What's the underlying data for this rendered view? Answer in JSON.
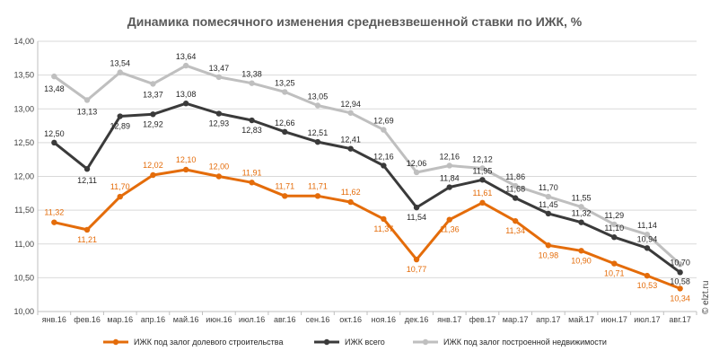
{
  "chart_data": {
    "type": "line",
    "title": "Динамика помесячного изменения средневзвешенной ставки по ИЖК, %",
    "categories": [
      "янв.16",
      "фев.16",
      "мар.16",
      "апр.16",
      "май.16",
      "июн.16",
      "июл.16",
      "авг.16",
      "сен.16",
      "окт.16",
      "ноя.16",
      "дек.16",
      "янв.17",
      "фев.17",
      "мар.17",
      "апр.17",
      "май.17",
      "июн.17",
      "июл.17",
      "авг.17"
    ],
    "ylim": [
      10.0,
      14.0
    ],
    "yticks": [
      "10,00",
      "10,50",
      "11,00",
      "11,50",
      "12,00",
      "12,50",
      "13,00",
      "13,50",
      "14,00"
    ],
    "grid": true,
    "legend_position": "bottom",
    "series": [
      {
        "name": "ИЖК под залог долевого строительства",
        "color": "#e46c0a",
        "values": [
          11.32,
          11.21,
          11.7,
          12.02,
          12.1,
          12.0,
          11.91,
          11.71,
          11.71,
          11.62,
          11.37,
          10.77,
          11.36,
          11.61,
          11.34,
          10.98,
          10.9,
          10.71,
          10.53,
          10.34
        ],
        "labels": [
          "11,32",
          "11,21",
          "11,70",
          "12,02",
          "12,10",
          "12,00",
          "11,91",
          "11,71",
          "11,71",
          "11,62",
          "11,37",
          "10,77",
          "11,36",
          "11,61",
          "11,34",
          "10,98",
          "10,90",
          "10,71",
          "10,53",
          "10,34"
        ]
      },
      {
        "name": "ИЖК всего",
        "color": "#3a3a3a",
        "values": [
          12.5,
          12.11,
          12.89,
          12.92,
          13.08,
          12.93,
          12.83,
          12.66,
          12.51,
          12.41,
          12.16,
          11.54,
          11.84,
          11.95,
          11.68,
          11.45,
          11.32,
          11.1,
          10.94,
          10.58
        ],
        "labels": [
          "12,50",
          "12,11",
          "12,89",
          "12,92",
          "13,08",
          "12,93",
          "12,83",
          "12,66",
          "12,51",
          "12,41",
          "12,16",
          "11,54",
          "11,84",
          "11,95",
          "11,68",
          "11,45",
          "11,32",
          "11,10",
          "10,94",
          "10,58"
        ]
      },
      {
        "name": "ИЖК под залог построенной недвижимости",
        "color": "#bfbfbf",
        "values": [
          13.48,
          13.13,
          13.54,
          13.37,
          13.64,
          13.47,
          13.38,
          13.25,
          13.05,
          12.94,
          12.69,
          12.06,
          12.16,
          12.12,
          11.86,
          11.7,
          11.55,
          11.29,
          11.14,
          10.7
        ],
        "labels": [
          "13,48",
          "13,13",
          "13,54",
          "13,37",
          "13,64",
          "13,47",
          "13,38",
          "13,25",
          "13,05",
          "12,94",
          "12,69",
          "12,06",
          "12,16",
          "12,12",
          "11,86",
          "11,70",
          "11,55",
          "11,29",
          "11,14",
          "10,70"
        ]
      }
    ],
    "watermark": "© elzt.ru"
  }
}
